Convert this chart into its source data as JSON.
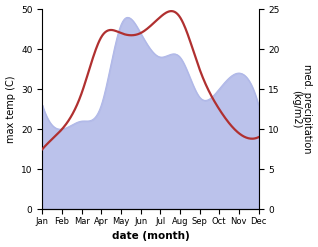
{
  "months": [
    "Jan",
    "Feb",
    "Mar",
    "Apr",
    "May",
    "Jun",
    "Jul",
    "Aug",
    "Sep",
    "Oct",
    "Nov",
    "Dec"
  ],
  "x": [
    0,
    1,
    2,
    3,
    4,
    5,
    6,
    7,
    8,
    9,
    10,
    11
  ],
  "temp": [
    15,
    20,
    29,
    43,
    44,
    44,
    48,
    48,
    35,
    25,
    19,
    18
  ],
  "precip_kg": [
    13,
    10,
    11,
    13,
    23,
    22,
    19,
    19,
    14,
    15,
    17,
    13
  ],
  "temp_color": "#b03030",
  "precip_fill_color": "#b0b8e8",
  "left_ylim": [
    0,
    50
  ],
  "right_ylim": [
    0,
    25
  ],
  "left_yticks": [
    0,
    10,
    20,
    30,
    40,
    50
  ],
  "right_yticks": [
    0,
    5,
    10,
    15,
    20,
    25
  ],
  "xlabel": "date (month)",
  "ylabel_left": "max temp (C)",
  "ylabel_right": "med. precipitation\n(kg/m2)",
  "bg_color": "#ffffff"
}
